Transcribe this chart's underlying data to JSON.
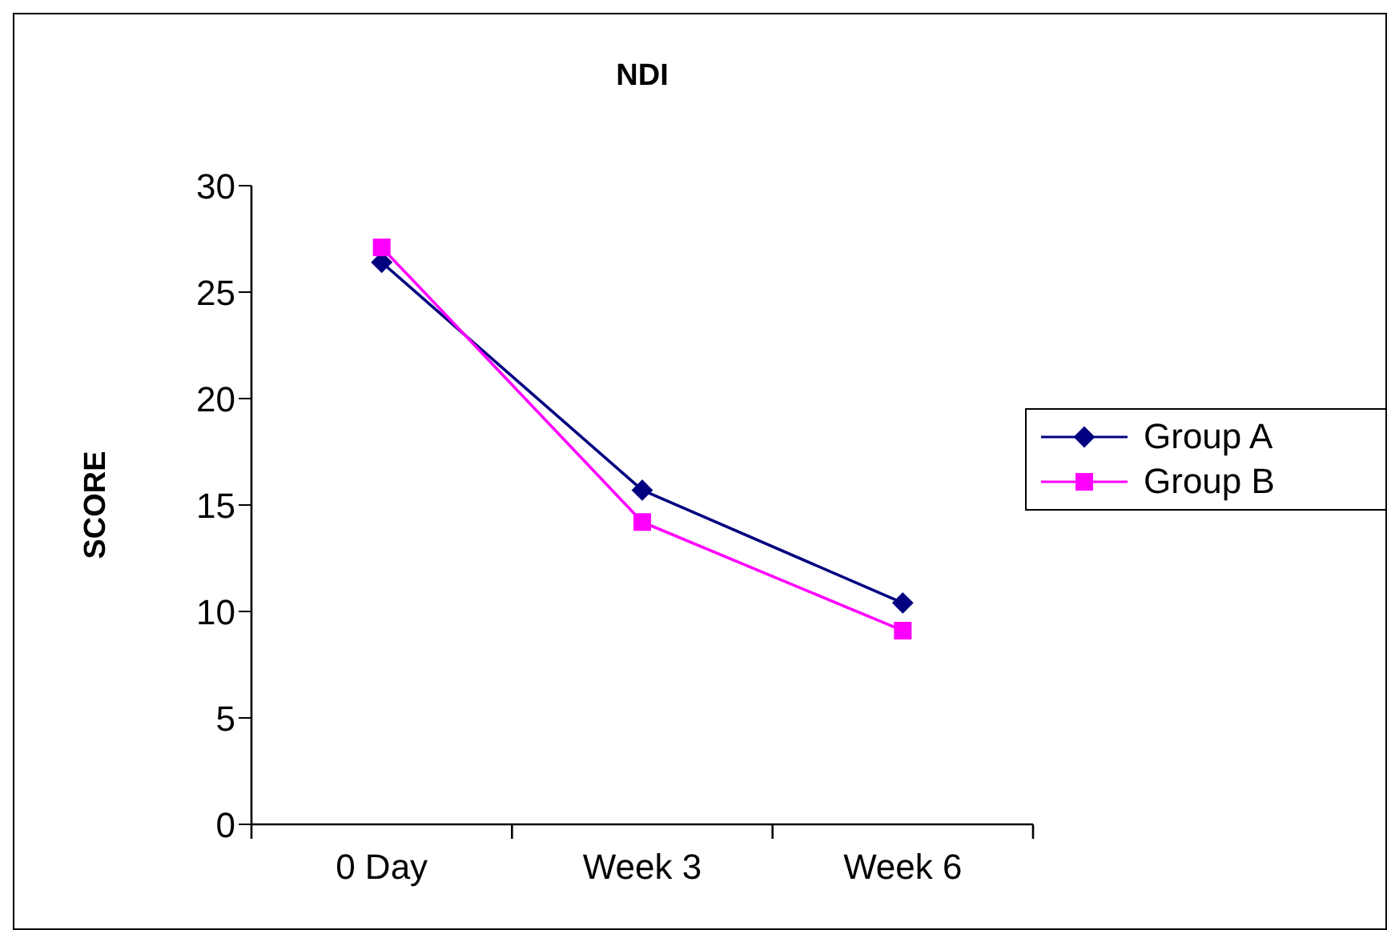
{
  "chart_data": {
    "type": "line",
    "title": "NDI",
    "ylabel": "SCORE",
    "categories": [
      "0 Day",
      "Week 3",
      "Week 6"
    ],
    "series": [
      {
        "name": "Group A",
        "color": "#000080",
        "marker": "diamond",
        "values": [
          26.4,
          15.7,
          10.4
        ]
      },
      {
        "name": "Group B",
        "color": "#ff00ff",
        "marker": "square",
        "values": [
          27.1,
          14.2,
          9.1
        ]
      }
    ],
    "ylim": [
      0,
      30
    ],
    "yticks": [
      0,
      5,
      10,
      15,
      20,
      25,
      30
    ],
    "grid": false,
    "legend": "right"
  }
}
